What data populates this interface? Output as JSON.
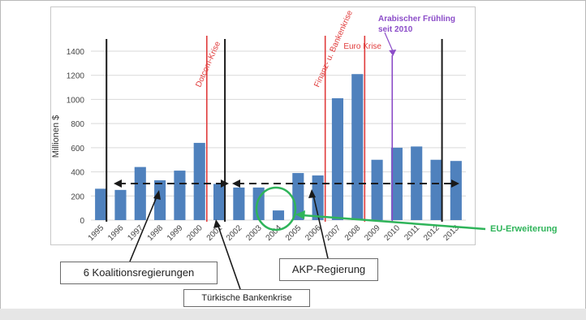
{
  "chart_data": {
    "type": "bar",
    "categories": [
      "1995",
      "1996",
      "1997",
      "1998",
      "1999",
      "2000",
      "2001",
      "2002",
      "2003",
      "2004",
      "2005",
      "2006",
      "2007",
      "2008",
      "2009",
      "2010",
      "2011",
      "2012",
      "2013"
    ],
    "values": [
      260,
      250,
      440,
      330,
      410,
      640,
      300,
      270,
      270,
      80,
      390,
      370,
      1010,
      1210,
      500,
      600,
      610,
      500,
      490
    ],
    "ylabel": "Millionen $",
    "ylim": [
      0,
      1400
    ],
    "yticks": [
      0,
      200,
      400,
      600,
      800,
      1000,
      1200,
      1400
    ],
    "grid": true,
    "bar_color": "#4f81bd",
    "period_dividers": [
      {
        "year": "1996",
        "color": "#1a1a1a"
      },
      {
        "year": "2002",
        "color": "#1a1a1a"
      },
      {
        "year": "2013",
        "color": "#1a1a1a"
      }
    ],
    "events": [
      {
        "label": "Dotcom-Krise",
        "year": "2000",
        "color": "#e03c3c"
      },
      {
        "label": "Finanz- u. Bankenkrise",
        "year": "2006",
        "color": "#e03c3c"
      },
      {
        "label": "Euro Krise",
        "year": "2008",
        "color": "#e03c3c"
      },
      {
        "label": "Arabischer Frühling seit 2010",
        "year": "2010",
        "color": "#8b4cc8"
      }
    ],
    "annotations": {
      "koalition": "6 Koalitionsregierungen",
      "akp": "AKP-Regierung",
      "bankenkrise": "Türkische Bankenkrise",
      "eu": "EU-Erweiterung"
    },
    "annotation_colors": {
      "callout_border": "#6b6b6b",
      "eu_green": "#2fb45a",
      "dashed_arrow": "#1a1a1a"
    }
  }
}
